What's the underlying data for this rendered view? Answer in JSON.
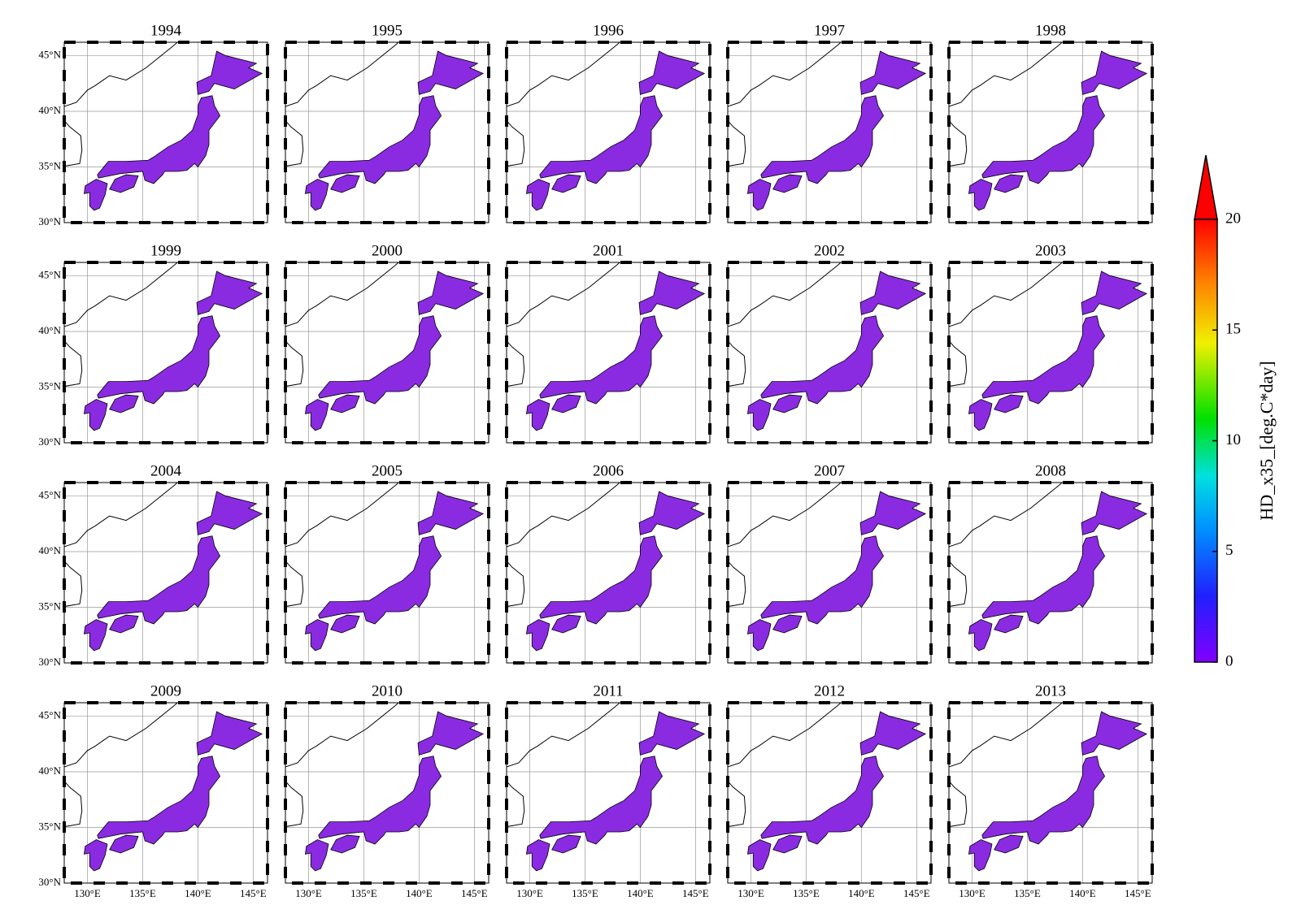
{
  "panels": [
    {
      "title": "1994"
    },
    {
      "title": "1995"
    },
    {
      "title": "1996"
    },
    {
      "title": "1997"
    },
    {
      "title": "1998"
    },
    {
      "title": "1999"
    },
    {
      "title": "2000"
    },
    {
      "title": "2001"
    },
    {
      "title": "2002"
    },
    {
      "title": "2003"
    },
    {
      "title": "2004"
    },
    {
      "title": "2005"
    },
    {
      "title": "2006"
    },
    {
      "title": "2007"
    },
    {
      "title": "2008"
    },
    {
      "title": "2009"
    },
    {
      "title": "2010"
    },
    {
      "title": "2011"
    },
    {
      "title": "2012"
    },
    {
      "title": "2013"
    }
  ],
  "lat_ticks": [
    {
      "value": 30,
      "label": "30°N"
    },
    {
      "value": 35,
      "label": "35°N"
    },
    {
      "value": 40,
      "label": "40°N"
    },
    {
      "value": 45,
      "label": "45°N"
    }
  ],
  "lon_ticks": [
    {
      "value": 130,
      "label": "130°E"
    },
    {
      "value": 135,
      "label": "135°E"
    },
    {
      "value": 140,
      "label": "140°E"
    },
    {
      "value": 145,
      "label": "145°E"
    }
  ],
  "colorbar": {
    "label": "HD_x35_[deg.C*day]",
    "lim": [
      0,
      20
    ],
    "ticks": [
      0,
      5,
      10,
      15,
      20
    ]
  }
}
